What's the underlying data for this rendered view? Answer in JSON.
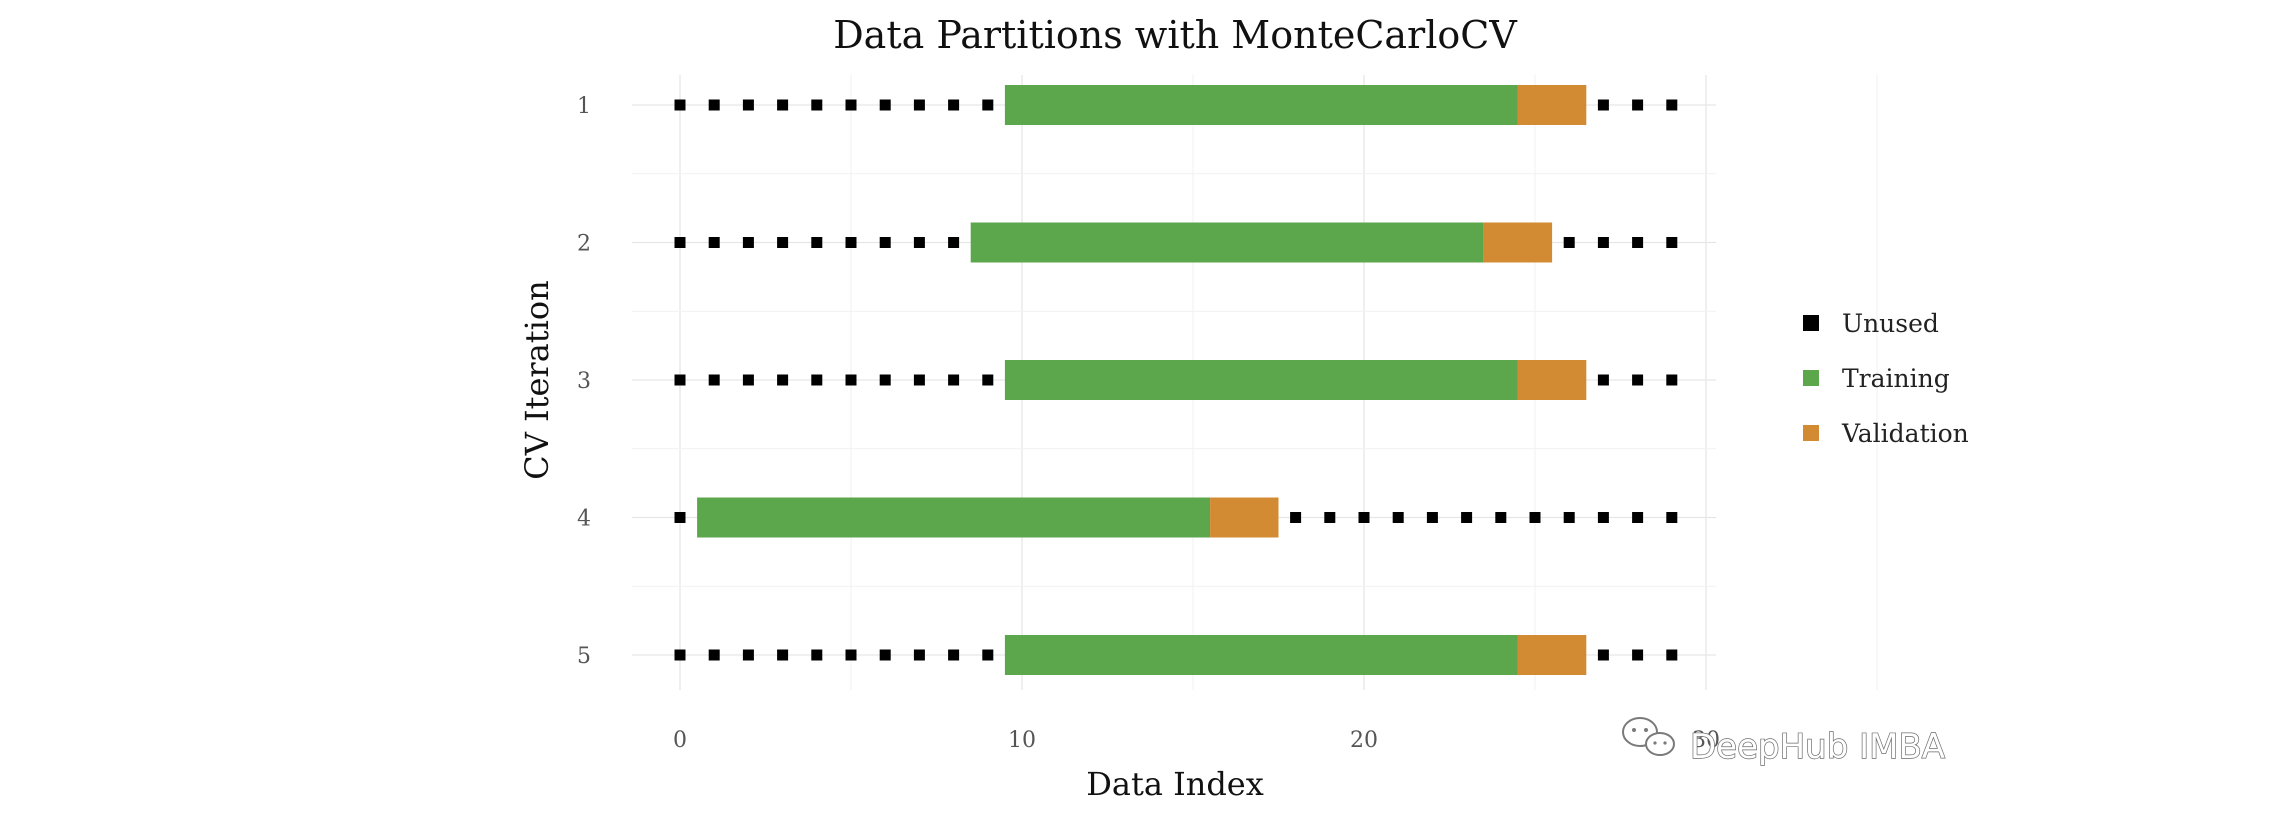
{
  "chart_data": {
    "type": "bar",
    "title": "Data Partitions with MonteCarloCV",
    "xlabel": "Data Index",
    "ylabel": "CV Iteration",
    "xlim": [
      -1.5,
      30
    ],
    "x_ticks": [
      0,
      10,
      20,
      30
    ],
    "x_tick_labels": [
      "0",
      "10",
      "20",
      "30"
    ],
    "categories": [
      "1",
      "2",
      "3",
      "4",
      "5"
    ],
    "n_points": 30,
    "grid": true,
    "legend_position": "right",
    "series": [
      {
        "name": "Unused",
        "color": "#000000"
      },
      {
        "name": "Training",
        "color": "#5ca64c"
      },
      {
        "name": "Validation",
        "color": "#d38b33"
      }
    ],
    "iterations": [
      {
        "label": "1",
        "train": [
          10,
          24
        ],
        "validation": [
          25,
          26
        ]
      },
      {
        "label": "2",
        "train": [
          9,
          23
        ],
        "validation": [
          24,
          25
        ]
      },
      {
        "label": "3",
        "train": [
          10,
          24
        ],
        "validation": [
          25,
          26
        ]
      },
      {
        "label": "4",
        "train": [
          1,
          15
        ],
        "validation": [
          16,
          17
        ]
      },
      {
        "label": "5",
        "train": [
          10,
          24
        ],
        "validation": [
          25,
          26
        ]
      }
    ]
  },
  "watermark": {
    "icon": "wechat-icon",
    "text": "DeepHub IMBA"
  }
}
